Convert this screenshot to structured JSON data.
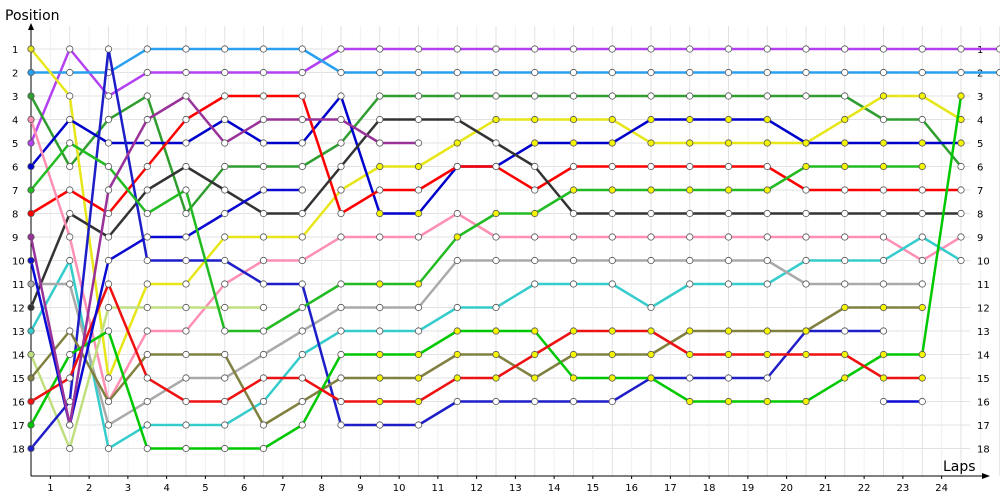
{
  "chart_data": {
    "type": "line",
    "ylabel": "Position",
    "xlabel": "Laps",
    "x": [
      0,
      1,
      2,
      3,
      4,
      5,
      6,
      7,
      8,
      9,
      10,
      11,
      12,
      13,
      14,
      15,
      16,
      17,
      18,
      19,
      20,
      21,
      22,
      23,
      24,
      25
    ],
    "x_tick_labels": [
      "1",
      "2",
      "3",
      "4",
      "5",
      "6",
      "7",
      "8",
      "9",
      "10",
      "11",
      "12",
      "13",
      "14",
      "15",
      "16",
      "17",
      "18",
      "19",
      "20",
      "21",
      "22",
      "23",
      "24"
    ],
    "y_ticks": [
      1,
      2,
      3,
      4,
      5,
      6,
      7,
      8,
      9,
      10,
      11,
      12,
      13,
      14,
      15,
      16,
      17,
      18
    ],
    "y_reversed": true,
    "grid": true,
    "series": [
      {
        "color": "#b341f2",
        "values": [
          5,
          1,
          3,
          2,
          2,
          2,
          2,
          2,
          1,
          1,
          1,
          1,
          1,
          1,
          1,
          1,
          1,
          1,
          1,
          1,
          1,
          1,
          1,
          1,
          1,
          1
        ]
      },
      {
        "color": "#2aa0f0",
        "values": [
          2,
          2,
          2,
          1,
          1,
          1,
          1,
          1,
          2,
          2,
          2,
          2,
          2,
          2,
          2,
          2,
          2,
          2,
          2,
          2,
          2,
          2,
          2,
          2,
          2,
          2
        ]
      },
      {
        "color": "#2f9e2f",
        "values": [
          3,
          6,
          4,
          3,
          8,
          6,
          6,
          6,
          5,
          3,
          3,
          3,
          3,
          3,
          3,
          3,
          3,
          3,
          3,
          3,
          3,
          3,
          4,
          4,
          6,
          null
        ]
      },
      {
        "color": "#e6e619",
        "values": [
          1,
          3,
          15,
          11,
          11,
          9,
          9,
          9,
          7,
          6,
          6,
          5,
          4,
          4,
          4,
          4,
          5,
          5,
          5,
          5,
          5,
          4,
          3,
          3,
          4,
          null
        ]
      },
      {
        "color": "#0000cc",
        "values": [
          6,
          4,
          5,
          5,
          5,
          4,
          5,
          5,
          3,
          8,
          8,
          6,
          6,
          5,
          5,
          5,
          4,
          4,
          4,
          4,
          5,
          5,
          5,
          5,
          5,
          null
        ]
      },
      {
        "color": "#ff0000",
        "values": [
          8,
          7,
          8,
          6,
          4,
          3,
          3,
          3,
          8,
          7,
          7,
          6,
          6,
          7,
          6,
          6,
          6,
          6,
          6,
          6,
          7,
          7,
          7,
          7,
          7,
          null
        ]
      },
      {
        "color": "#333333",
        "values": [
          12,
          8,
          9,
          7,
          6,
          7,
          8,
          8,
          6,
          4,
          4,
          4,
          5,
          6,
          8,
          8,
          8,
          8,
          8,
          8,
          8,
          8,
          8,
          8,
          8,
          null
        ]
      },
      {
        "color": "#ff8fb3",
        "values": [
          4,
          9,
          16,
          13,
          13,
          11,
          10,
          10,
          9,
          9,
          9,
          8,
          9,
          9,
          9,
          9,
          9,
          9,
          9,
          9,
          9,
          9,
          9,
          10,
          9,
          null
        ]
      },
      {
        "color": "#36cccc",
        "values": [
          13,
          10,
          18,
          17,
          17,
          17,
          16,
          14,
          13,
          13,
          13,
          12,
          12,
          11,
          11,
          11,
          12,
          11,
          11,
          11,
          10,
          10,
          10,
          9,
          10,
          null
        ]
      },
      {
        "color": "#aaaaaa",
        "values": [
          11,
          11,
          17,
          16,
          15,
          15,
          14,
          13,
          12,
          12,
          12,
          10,
          10,
          10,
          10,
          10,
          10,
          10,
          10,
          10,
          11,
          11,
          11,
          11,
          null,
          null
        ]
      },
      {
        "color": "#c0e080",
        "values": [
          14,
          18,
          12,
          12,
          12,
          12,
          12,
          null,
          null,
          null,
          null,
          null,
          null,
          null,
          null,
          null,
          null,
          null,
          null,
          null,
          null,
          null,
          null,
          null,
          null,
          null
        ]
      },
      {
        "color": "#1e1ec8",
        "values": [
          18,
          16,
          1,
          10,
          10,
          10,
          11,
          11,
          17,
          17,
          17,
          16,
          16,
          16,
          16,
          16,
          15,
          15,
          15,
          15,
          13,
          13,
          13,
          null,
          null,
          null
        ]
      },
      {
        "color": "#808040",
        "values": [
          15,
          13,
          16,
          14,
          14,
          14,
          17,
          16,
          15,
          15,
          15,
          14,
          14,
          15,
          14,
          14,
          14,
          13,
          13,
          13,
          13,
          12,
          12,
          12,
          null,
          null
        ]
      },
      {
        "color": "#00c800",
        "values": [
          17,
          14,
          13,
          18,
          18,
          18,
          18,
          17,
          14,
          14,
          14,
          13,
          13,
          13,
          15,
          15,
          15,
          16,
          16,
          16,
          16,
          15,
          14,
          14,
          3,
          null
        ]
      },
      {
        "color": "#ee1111",
        "values": [
          16,
          15,
          11,
          15,
          16,
          16,
          15,
          15,
          16,
          16,
          16,
          15,
          15,
          14,
          13,
          13,
          13,
          14,
          14,
          14,
          14,
          14,
          15,
          15,
          null,
          null
        ]
      },
      {
        "color": "#0a0ad2",
        "values": [
          10,
          17,
          10,
          9,
          9,
          8,
          7,
          7,
          null,
          null,
          null,
          null,
          null,
          null,
          null,
          null,
          null,
          null,
          null,
          null,
          null,
          null,
          16,
          16,
          null,
          null
        ]
      },
      {
        "color": "#22bb22",
        "values": [
          7,
          5,
          6,
          8,
          7,
          13,
          13,
          12,
          11,
          11,
          11,
          9,
          8,
          8,
          7,
          7,
          7,
          7,
          7,
          7,
          6,
          6,
          6,
          6,
          null,
          null
        ]
      },
      {
        "color": "#993399",
        "values": [
          9,
          17,
          7,
          4,
          3,
          5,
          4,
          4,
          4,
          5,
          5,
          null,
          null,
          null,
          null,
          null,
          null,
          null,
          null,
          null,
          null,
          null,
          null,
          null,
          null,
          null
        ]
      }
    ]
  }
}
